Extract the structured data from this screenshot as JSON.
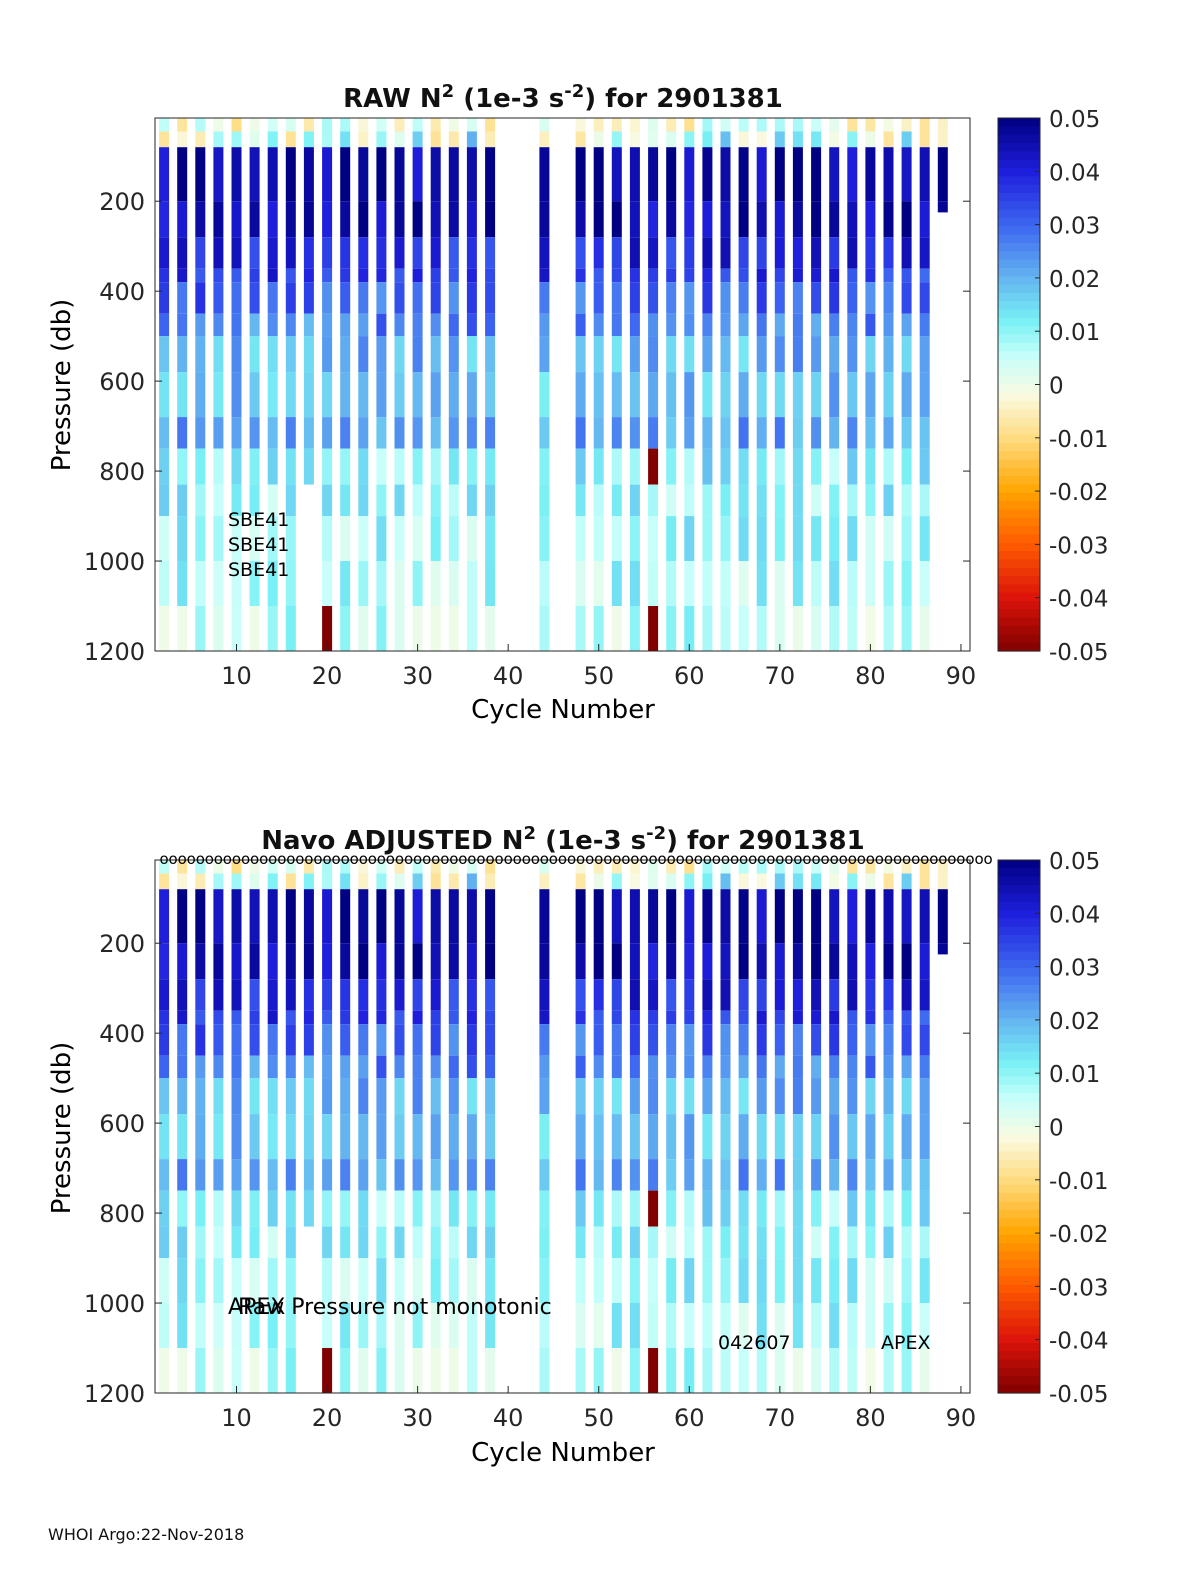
{
  "footer": "WHOI Argo:22-Nov-2018",
  "colorbar": {
    "ticks": [
      "0.05",
      "0.04",
      "0.03",
      "0.02",
      "0.01",
      "0",
      "-0.01",
      "-0.02",
      "-0.03",
      "-0.04",
      "-0.05"
    ],
    "range": [
      -0.05,
      0.05
    ]
  },
  "chart_data": [
    {
      "type": "heatmap",
      "title_main": "RAW N",
      "title_sup": "2",
      "title_mid": " (1e-3 s",
      "title_sup2": "-2",
      "title_end": ") for 2901381",
      "xlabel": "Cycle Number",
      "ylabel": "Pressure (db)",
      "xlim": [
        1,
        91
      ],
      "ylim": [
        1200,
        15
      ],
      "xticks": [
        "10",
        "20",
        "30",
        "40",
        "50",
        "60",
        "70",
        "80",
        "90"
      ],
      "yticks": [
        "200",
        "400",
        "600",
        "800",
        "1000",
        "1200"
      ],
      "annotations": [
        "SBE41",
        "SBE41",
        "SBE41"
      ],
      "profiles_max_pressure": {
        "18": 830,
        "43": 900,
        "45": 900,
        "88": 225
      },
      "missing_cycles": [
        19,
        40,
        41,
        42,
        46,
        47
      ]
    },
    {
      "type": "heatmap",
      "title_main": "Navo  ADJUSTED N",
      "title_sup": "2",
      "title_mid": " (1e-3 s",
      "title_sup2": "-2",
      "title_end": ") for 2901381",
      "xlabel": "Cycle Number",
      "ylabel": "Pressure (db)",
      "xlim": [
        1,
        91
      ],
      "ylim": [
        1200,
        15
      ],
      "xticks": [
        "10",
        "20",
        "30",
        "40",
        "50",
        "60",
        "70",
        "80",
        "90"
      ],
      "yticks": [
        "200",
        "400",
        "600",
        "800",
        "1000",
        "1200"
      ],
      "annotations": [
        "APEX",
        "Raw Pressure not monotonic",
        "042607",
        "APEX"
      ],
      "top_marker": "o",
      "profiles_max_pressure": {
        "18": 830,
        "43": 900,
        "45": 900,
        "88": 225
      },
      "missing_cycles": [
        19,
        40,
        41,
        42,
        46,
        47
      ]
    }
  ]
}
